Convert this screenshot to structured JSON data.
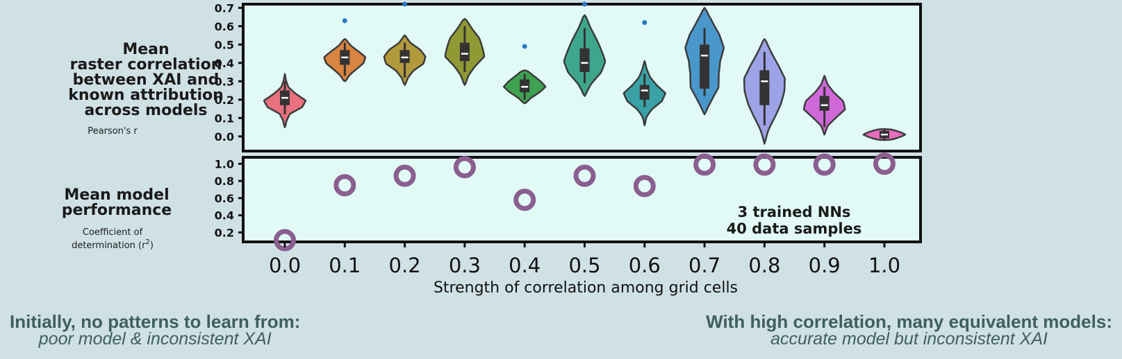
{
  "chart_data": [
    {
      "type": "violin",
      "ylabel_lines": [
        "Mean",
        "raster correlation",
        "between XAI and",
        "known attribution",
        "across models"
      ],
      "ylabel_sub": "Pearson's r",
      "yticks": [
        "0.0",
        "0.1",
        "0.2",
        "0.3",
        "0.4",
        "0.5",
        "0.6",
        "0.7"
      ],
      "ylim": [
        -0.08,
        0.72
      ],
      "categories": [
        "0.0",
        "0.1",
        "0.2",
        "0.3",
        "0.4",
        "0.5",
        "0.6",
        "0.7",
        "0.8",
        "0.9",
        "1.0"
      ],
      "series": [
        {
          "x": "0.0",
          "color": "#e8707f",
          "median": 0.21,
          "q1": 0.17,
          "q3": 0.25,
          "whisker_low": 0.12,
          "whisker_high": 0.3,
          "min": 0.05,
          "max": 0.34,
          "outliers": [],
          "shape": [
            0.05,
            0.12,
            0.28,
            0.85,
            1.0,
            0.55,
            0.2,
            0.08,
            0.02
          ]
        },
        {
          "x": "0.1",
          "color": "#d98440",
          "median": 0.43,
          "q1": 0.39,
          "q3": 0.47,
          "whisker_low": 0.33,
          "whisker_high": 0.51,
          "min": 0.3,
          "max": 0.53,
          "outliers": [
            0.63
          ],
          "shape": [
            0.12,
            0.3,
            0.6,
            0.9,
            1.0,
            0.7,
            0.35,
            0.15
          ]
        },
        {
          "x": "0.2",
          "color": "#b29a3c",
          "median": 0.43,
          "q1": 0.4,
          "q3": 0.47,
          "whisker_low": 0.32,
          "whisker_high": 0.51,
          "min": 0.28,
          "max": 0.55,
          "outliers": [
            0.72
          ],
          "shape": [
            0.08,
            0.2,
            0.45,
            0.9,
            1.0,
            0.8,
            0.35,
            0.1
          ]
        },
        {
          "x": "0.3",
          "color": "#8f9a34",
          "median": 0.45,
          "q1": 0.41,
          "q3": 0.51,
          "whisker_low": 0.35,
          "whisker_high": 0.6,
          "min": 0.28,
          "max": 0.64,
          "outliers": [],
          "shape": [
            0.08,
            0.25,
            0.55,
            0.95,
            0.85,
            0.75,
            0.45,
            0.2
          ]
        },
        {
          "x": "0.4",
          "color": "#3fa252",
          "median": 0.27,
          "q1": 0.24,
          "q3": 0.31,
          "whisker_low": 0.2,
          "whisker_high": 0.34,
          "min": 0.18,
          "max": 0.36,
          "outliers": [
            0.49
          ],
          "shape": [
            0.15,
            0.4,
            0.75,
            1.0,
            0.8,
            0.55,
            0.3
          ]
        },
        {
          "x": "0.5",
          "color": "#3ea68c",
          "median": 0.4,
          "q1": 0.35,
          "q3": 0.48,
          "whisker_low": 0.29,
          "whisker_high": 0.59,
          "min": 0.22,
          "max": 0.66,
          "outliers": [
            0.72
          ],
          "shape": [
            0.1,
            0.4,
            0.85,
            1.0,
            0.8,
            0.6,
            0.35,
            0.15
          ]
        },
        {
          "x": "0.6",
          "color": "#3aa1a6",
          "median": 0.25,
          "q1": 0.2,
          "q3": 0.28,
          "whisker_low": 0.16,
          "whisker_high": 0.34,
          "min": 0.06,
          "max": 0.41,
          "outliers": [
            0.62
          ],
          "shape": [
            0.04,
            0.12,
            0.4,
            0.85,
            1.0,
            0.6,
            0.3,
            0.15,
            0.04
          ]
        },
        {
          "x": "0.7",
          "color": "#4a97cc",
          "median": 0.44,
          "q1": 0.26,
          "q3": 0.5,
          "whisker_low": 0.22,
          "whisker_high": 0.59,
          "min": 0.12,
          "max": 0.7,
          "outliers": [],
          "shape": [
            0.1,
            0.45,
            0.75,
            0.7,
            0.75,
            0.95,
            0.8,
            0.5,
            0.15
          ]
        },
        {
          "x": "0.8",
          "color": "#9ea2e6",
          "median": 0.3,
          "q1": 0.17,
          "q3": 0.36,
          "whisker_low": 0.06,
          "whisker_high": 0.46,
          "min": -0.04,
          "max": 0.53,
          "outliers": [],
          "shape": [
            0.05,
            0.25,
            0.55,
            0.8,
            0.95,
            1.0,
            0.75,
            0.45,
            0.15
          ]
        },
        {
          "x": "0.9",
          "color": "#cf68d8",
          "median": 0.17,
          "q1": 0.14,
          "q3": 0.22,
          "whisker_low": 0.05,
          "whisker_high": 0.27,
          "min": 0.01,
          "max": 0.33,
          "outliers": [],
          "shape": [
            0.05,
            0.2,
            0.6,
            1.0,
            0.9,
            0.5,
            0.2,
            0.05
          ]
        },
        {
          "x": "1.0",
          "color": "#e86bbe",
          "median": 0.01,
          "q1": -0.01,
          "q3": 0.03,
          "whisker_low": -0.02,
          "whisker_high": 0.04,
          "min": -0.02,
          "max": 0.04,
          "outliers": [],
          "shape": [
            0.6,
            1.0,
            0.6
          ]
        }
      ]
    },
    {
      "type": "scatter",
      "ylabel_lines": [
        "Mean model",
        "performance"
      ],
      "ylabel_sub_lines": [
        "Coefficient of",
        "determination (r"
      ],
      "ylabel_sup": "2",
      "ylabel_close": ")",
      "yticks": [
        "0.2",
        "0.4",
        "0.6",
        "0.8",
        "1.0"
      ],
      "ylim": [
        0.09,
        1.075
      ],
      "marker_color": "#8a5e8f",
      "x": [
        "0.0",
        "0.1",
        "0.2",
        "0.3",
        "0.4",
        "0.5",
        "0.6",
        "0.7",
        "0.8",
        "0.9",
        "1.0"
      ],
      "y": [
        0.11,
        0.75,
        0.86,
        0.96,
        0.58,
        0.86,
        0.74,
        0.99,
        0.99,
        0.99,
        1.0
      ],
      "annotation_lines": [
        "3 trained NNs",
        "40 data samples"
      ],
      "xlabel": "Strength of correlation among grid cells",
      "xticks": [
        "0.0",
        "0.1",
        "0.2",
        "0.3",
        "0.4",
        "0.5",
        "0.6",
        "0.7",
        "0.8",
        "0.9",
        "1.0"
      ]
    }
  ],
  "captions": {
    "left": {
      "title": "Initially, no patterns to learn from:",
      "subtitle": "poor model & inconsistent XAI"
    },
    "right": {
      "title": "With high correlation, many equivalent models:",
      "subtitle": "accurate model but inconsistent XAI"
    }
  },
  "colors": {
    "background": "#d0e1e6",
    "panel": "#e1faf6",
    "frame": "#111111"
  }
}
